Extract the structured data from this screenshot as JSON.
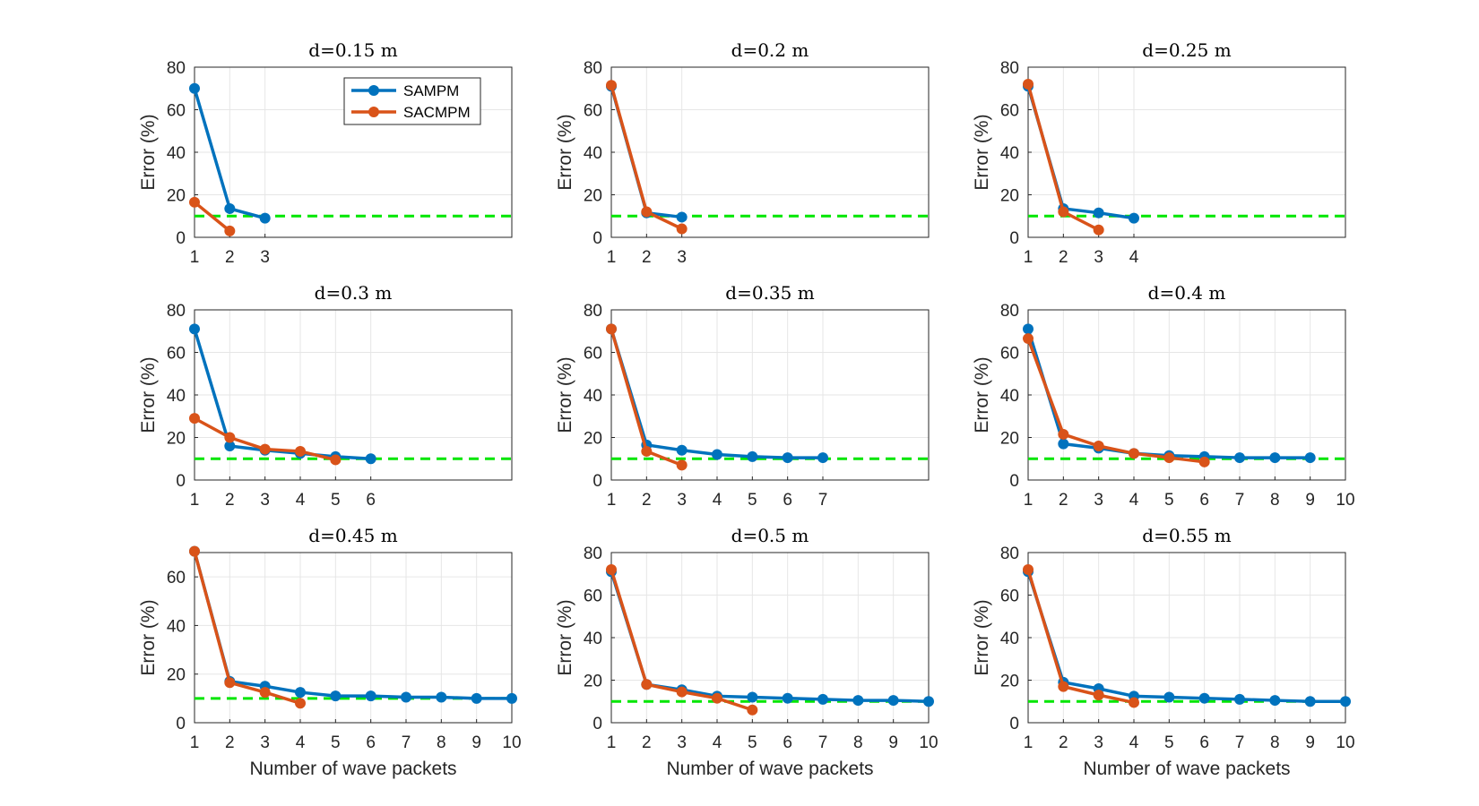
{
  "colors": {
    "SAMPM": "#0072BD",
    "SACMPM": "#D95319",
    "threshold": "#00E600"
  },
  "legend": {
    "placement": "top-right of first panel",
    "entries": [
      "SAMPM",
      "SACMPM"
    ]
  },
  "chart_data": [
    {
      "type": "line",
      "title": "d=0.15 m",
      "ylabel": "Error (%)",
      "xlabel": "",
      "xlim": [
        1,
        10
      ],
      "ylim": [
        0,
        80
      ],
      "xticks": [
        "1",
        "2",
        "3"
      ],
      "yticks": [
        "0",
        "20",
        "40",
        "60",
        "80"
      ],
      "grid": true,
      "threshold": 10,
      "series": [
        {
          "name": "SAMPM",
          "x": [
            1,
            2,
            3
          ],
          "values": [
            70,
            13.5,
            9
          ]
        },
        {
          "name": "SACMPM",
          "x": [
            1,
            2
          ],
          "values": [
            16.5,
            3
          ]
        }
      ]
    },
    {
      "type": "line",
      "title": "d=0.2 m",
      "ylabel": "Error (%)",
      "xlabel": "",
      "xlim": [
        1,
        10
      ],
      "ylim": [
        0,
        80
      ],
      "xticks": [
        "1",
        "2",
        "3"
      ],
      "yticks": [
        "0",
        "20",
        "40",
        "60",
        "80"
      ],
      "grid": true,
      "threshold": 10,
      "series": [
        {
          "name": "SAMPM",
          "x": [
            1,
            2,
            3
          ],
          "values": [
            71,
            11.5,
            9.5
          ]
        },
        {
          "name": "SACMPM",
          "x": [
            1,
            2,
            3
          ],
          "values": [
            71.5,
            12,
            4
          ]
        }
      ]
    },
    {
      "type": "line",
      "title": "d=0.25 m",
      "ylabel": "Error (%)",
      "xlabel": "",
      "xlim": [
        1,
        10
      ],
      "ylim": [
        0,
        80
      ],
      "xticks": [
        "1",
        "2",
        "3",
        "4"
      ],
      "yticks": [
        "0",
        "20",
        "40",
        "60",
        "80"
      ],
      "grid": true,
      "threshold": 10,
      "series": [
        {
          "name": "SAMPM",
          "x": [
            1,
            2,
            3,
            4
          ],
          "values": [
            71,
            13.5,
            11.5,
            9
          ]
        },
        {
          "name": "SACMPM",
          "x": [
            1,
            2,
            3
          ],
          "values": [
            72,
            12,
            3.5
          ]
        }
      ]
    },
    {
      "type": "line",
      "title": "d=0.3 m",
      "ylabel": "Error (%)",
      "xlabel": "",
      "xlim": [
        1,
        10
      ],
      "ylim": [
        0,
        80
      ],
      "xticks": [
        "1",
        "2",
        "3",
        "4",
        "5",
        "6"
      ],
      "yticks": [
        "0",
        "20",
        "40",
        "60",
        "80"
      ],
      "grid": true,
      "threshold": 10,
      "series": [
        {
          "name": "SAMPM",
          "x": [
            1,
            2,
            3,
            4,
            5,
            6
          ],
          "values": [
            71,
            16,
            14,
            12.5,
            11,
            10
          ]
        },
        {
          "name": "SACMPM",
          "x": [
            1,
            2,
            3,
            4,
            5
          ],
          "values": [
            29,
            20,
            14.5,
            13.5,
            9.5
          ]
        }
      ]
    },
    {
      "type": "line",
      "title": "d=0.35 m",
      "ylabel": "Error (%)",
      "xlabel": "",
      "xlim": [
        1,
        10
      ],
      "ylim": [
        0,
        80
      ],
      "xticks": [
        "1",
        "2",
        "3",
        "4",
        "5",
        "6",
        "7"
      ],
      "yticks": [
        "0",
        "20",
        "40",
        "60",
        "80"
      ],
      "grid": true,
      "threshold": 10,
      "series": [
        {
          "name": "SAMPM",
          "x": [
            1,
            2,
            3,
            4,
            5,
            6,
            7
          ],
          "values": [
            71,
            16.5,
            14,
            12,
            11,
            10.5,
            10.5
          ]
        },
        {
          "name": "SACMPM",
          "x": [
            1,
            2,
            3
          ],
          "values": [
            71,
            13.5,
            7
          ]
        }
      ]
    },
    {
      "type": "line",
      "title": "d=0.4 m",
      "ylabel": "Error (%)",
      "xlabel": "",
      "xlim": [
        1,
        10
      ],
      "ylim": [
        0,
        80
      ],
      "xticks": [
        "1",
        "2",
        "3",
        "4",
        "5",
        "6",
        "7",
        "8",
        "9",
        "10"
      ],
      "yticks": [
        "0",
        "20",
        "40",
        "60",
        "80"
      ],
      "grid": true,
      "threshold": 10,
      "series": [
        {
          "name": "SAMPM",
          "x": [
            1,
            2,
            3,
            4,
            5,
            6,
            7,
            8,
            9
          ],
          "values": [
            71,
            17,
            15,
            12.5,
            11.5,
            11,
            10.5,
            10.5,
            10.5
          ]
        },
        {
          "name": "SACMPM",
          "x": [
            1,
            2,
            3,
            4,
            5,
            6
          ],
          "values": [
            66.5,
            21.5,
            16,
            12.5,
            10.5,
            8.5
          ]
        }
      ]
    },
    {
      "type": "line",
      "title": "d=0.45 m",
      "ylabel": "Error (%)",
      "xlabel": "Number of wave packets",
      "xlim": [
        1,
        10
      ],
      "ylim": [
        0,
        70
      ],
      "xticks": [
        "1",
        "2",
        "3",
        "4",
        "5",
        "6",
        "7",
        "8",
        "9",
        "10"
      ],
      "yticks": [
        "0",
        "20",
        "40",
        "60"
      ],
      "grid": true,
      "threshold": 10,
      "series": [
        {
          "name": "SAMPM",
          "x": [
            1,
            2,
            3,
            4,
            5,
            6,
            7,
            8,
            9,
            10
          ],
          "values": [
            70.5,
            17,
            15,
            12.5,
            11,
            11,
            10.5,
            10.5,
            10,
            10
          ]
        },
        {
          "name": "SACMPM",
          "x": [
            1,
            2,
            3,
            4
          ],
          "values": [
            70.5,
            16.5,
            12.5,
            8
          ]
        }
      ]
    },
    {
      "type": "line",
      "title": "d=0.5 m",
      "ylabel": "Error (%)",
      "xlabel": "Number of wave packets",
      "xlim": [
        1,
        10
      ],
      "ylim": [
        0,
        80
      ],
      "xticks": [
        "1",
        "2",
        "3",
        "4",
        "5",
        "6",
        "7",
        "8",
        "9",
        "10"
      ],
      "yticks": [
        "0",
        "20",
        "40",
        "60",
        "80"
      ],
      "grid": true,
      "threshold": 10,
      "series": [
        {
          "name": "SAMPM",
          "x": [
            1,
            2,
            3,
            4,
            5,
            6,
            7,
            8,
            9,
            10
          ],
          "values": [
            71,
            18,
            15.5,
            12.5,
            12,
            11.5,
            11,
            10.5,
            10.5,
            10
          ]
        },
        {
          "name": "SACMPM",
          "x": [
            1,
            2,
            3,
            4,
            5
          ],
          "values": [
            72,
            18,
            14.5,
            11.5,
            6
          ]
        }
      ]
    },
    {
      "type": "line",
      "title": "d=0.55 m",
      "ylabel": "Error (%)",
      "xlabel": "Number of wave packets",
      "xlim": [
        1,
        10
      ],
      "ylim": [
        0,
        80
      ],
      "xticks": [
        "1",
        "2",
        "3",
        "4",
        "5",
        "6",
        "7",
        "8",
        "9",
        "10"
      ],
      "yticks": [
        "0",
        "20",
        "40",
        "60",
        "80"
      ],
      "grid": true,
      "threshold": 10,
      "series": [
        {
          "name": "SAMPM",
          "x": [
            1,
            2,
            3,
            4,
            5,
            6,
            7,
            8,
            9,
            10
          ],
          "values": [
            71,
            19,
            16,
            12.5,
            12,
            11.5,
            11,
            10.5,
            10,
            10
          ]
        },
        {
          "name": "SACMPM",
          "x": [
            1,
            2,
            3,
            4
          ],
          "values": [
            72,
            17,
            13,
            9.5
          ]
        }
      ]
    }
  ]
}
